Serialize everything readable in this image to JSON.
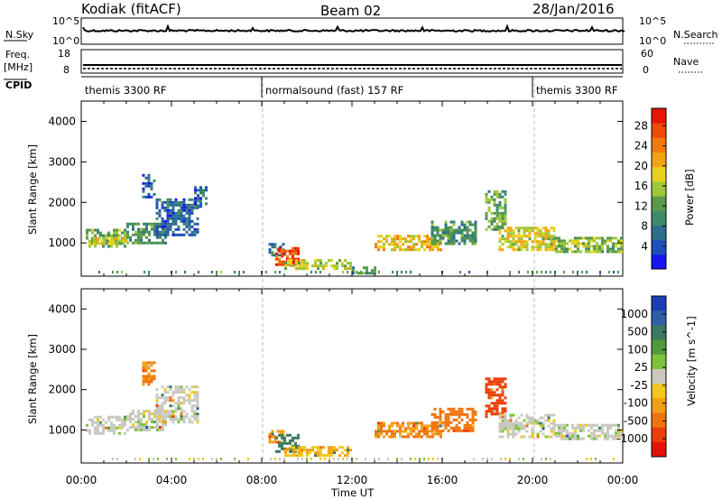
{
  "header": {
    "station": "Kodiak (fitACF)",
    "beam": "Beam 02",
    "date": "28/Jan/2016"
  },
  "noise_panel": {
    "left_label": "N.Sky",
    "right_label": "N.Search",
    "left_ticks": [
      "10^5",
      "10^0"
    ],
    "right_ticks": [
      "10^5",
      "10^0"
    ]
  },
  "freq_panel": {
    "left_label_top": "Freq.",
    "left_label_unit": "[MHz]",
    "left_ticks": [
      "18",
      "8"
    ],
    "right_label": "Nave",
    "right_ticks": [
      "60",
      "0"
    ]
  },
  "cpid": {
    "label": "CPID",
    "segments": [
      {
        "name": "themis 3300 RF",
        "start_hour": 0,
        "end_hour": 8
      },
      {
        "name": "normalsound (fast) 157 RF",
        "start_hour": 8,
        "end_hour": 20
      },
      {
        "name": "themis 3300 RF",
        "start_hour": 20,
        "end_hour": 24
      }
    ]
  },
  "chart_data": [
    {
      "type": "heatmap",
      "panel": "power",
      "ylabel": "Slant Range [km]",
      "ylim": [
        180,
        4500
      ],
      "yticks": [
        1000,
        2000,
        3000,
        4000
      ],
      "xlim_hours": [
        0,
        24
      ],
      "colorbar": {
        "label": "Power [dB]",
        "ticks": [
          "4",
          "8",
          "12",
          "16",
          "20",
          "24",
          "28"
        ],
        "range": [
          0,
          30
        ],
        "colors": [
          "#1515f0",
          "#1d4fb8",
          "#2c6e8c",
          "#3e8a68",
          "#5a9a4a",
          "#9cc83a",
          "#e6d21c",
          "#f3a413",
          "#f27a0c",
          "#ee4a08",
          "#e81505"
        ]
      },
      "regions": [
        {
          "t": [
            0.2,
            2.0
          ],
          "r": [
            900,
            1350
          ],
          "level": 13
        },
        {
          "t": [
            0.5,
            2.0
          ],
          "r": [
            950,
            1150
          ],
          "level": 18
        },
        {
          "t": [
            2.0,
            3.8
          ],
          "r": [
            1000,
            1500
          ],
          "level": 10
        },
        {
          "t": [
            2.7,
            3.3
          ],
          "r": [
            2100,
            2700
          ],
          "level": 6
        },
        {
          "t": [
            3.3,
            5.2
          ],
          "r": [
            1200,
            2100
          ],
          "level": 6
        },
        {
          "t": [
            5.0,
            5.5
          ],
          "r": [
            1900,
            2400
          ],
          "level": 6
        },
        {
          "t": [
            8.3,
            9.0
          ],
          "r": [
            700,
            1000
          ],
          "level": 9
        },
        {
          "t": [
            8.6,
            9.6
          ],
          "r": [
            450,
            900
          ],
          "level": 27
        },
        {
          "t": [
            9.0,
            12.0
          ],
          "r": [
            350,
            600
          ],
          "level": 16
        },
        {
          "t": [
            12.0,
            13.0
          ],
          "r": [
            280,
            420
          ],
          "level": 10
        },
        {
          "t": [
            13.0,
            16.0
          ],
          "r": [
            850,
            1200
          ],
          "level": 19
        },
        {
          "t": [
            15.5,
            17.5
          ],
          "r": [
            950,
            1550
          ],
          "level": 11
        },
        {
          "t": [
            17.9,
            18.8
          ],
          "r": [
            1300,
            2300
          ],
          "level": 12
        },
        {
          "t": [
            18.5,
            21.0
          ],
          "r": [
            800,
            1400
          ],
          "level": 17
        },
        {
          "t": [
            21.0,
            23.9
          ],
          "r": [
            750,
            1150
          ],
          "level": 14
        }
      ]
    },
    {
      "type": "heatmap",
      "panel": "velocity",
      "ylabel": "Slant Range [km]",
      "ylim": [
        180,
        4500
      ],
      "yticks": [
        1000,
        2000,
        3000,
        4000
      ],
      "xlim_hours": [
        0,
        24
      ],
      "colorbar": {
        "label": "Velocity [m s^-1]",
        "ticks": [
          "1000",
          "500",
          "100",
          "25",
          "-25",
          "-100",
          "-500",
          "-1000"
        ],
        "colors": [
          "#1a3fb5",
          "#2d5fa8",
          "#3a7a60",
          "#4f9a3c",
          "#7cc33a",
          "#c9c9c0",
          "#f1c71f",
          "#f29f16",
          "#f0740e",
          "#ea3f0a",
          "#e4120a"
        ]
      },
      "regions": [
        {
          "t": [
            0.2,
            2.0
          ],
          "r": [
            900,
            1350
          ],
          "vel": 0
        },
        {
          "t": [
            2.0,
            3.8
          ],
          "r": [
            1000,
            1500
          ],
          "vel": 0
        },
        {
          "t": [
            2.7,
            3.3
          ],
          "r": [
            2100,
            2700
          ],
          "vel": -150
        },
        {
          "t": [
            3.3,
            5.2
          ],
          "r": [
            1200,
            2100
          ],
          "vel": 0
        },
        {
          "t": [
            8.3,
            9.0
          ],
          "r": [
            700,
            1000
          ],
          "vel": -120
        },
        {
          "t": [
            8.6,
            9.6
          ],
          "r": [
            450,
            900
          ],
          "vel": 200
        },
        {
          "t": [
            9.0,
            12.0
          ],
          "r": [
            350,
            600
          ],
          "vel": -60
        },
        {
          "t": [
            13.0,
            16.0
          ],
          "r": [
            850,
            1200
          ],
          "vel": -150
        },
        {
          "t": [
            15.5,
            17.5
          ],
          "r": [
            1000,
            1550
          ],
          "vel": -200
        },
        {
          "t": [
            17.9,
            18.8
          ],
          "r": [
            1300,
            2300
          ],
          "vel": -400
        },
        {
          "t": [
            18.5,
            21.0
          ],
          "r": [
            800,
            1400
          ],
          "vel": 0
        },
        {
          "t": [
            21.0,
            23.9
          ],
          "r": [
            750,
            1150
          ],
          "vel": 0
        }
      ]
    }
  ],
  "x_axis": {
    "label": "Time UT",
    "ticks": [
      "00:00",
      "04:00",
      "08:00",
      "12:00",
      "16:00",
      "20:00",
      "00:00"
    ]
  }
}
